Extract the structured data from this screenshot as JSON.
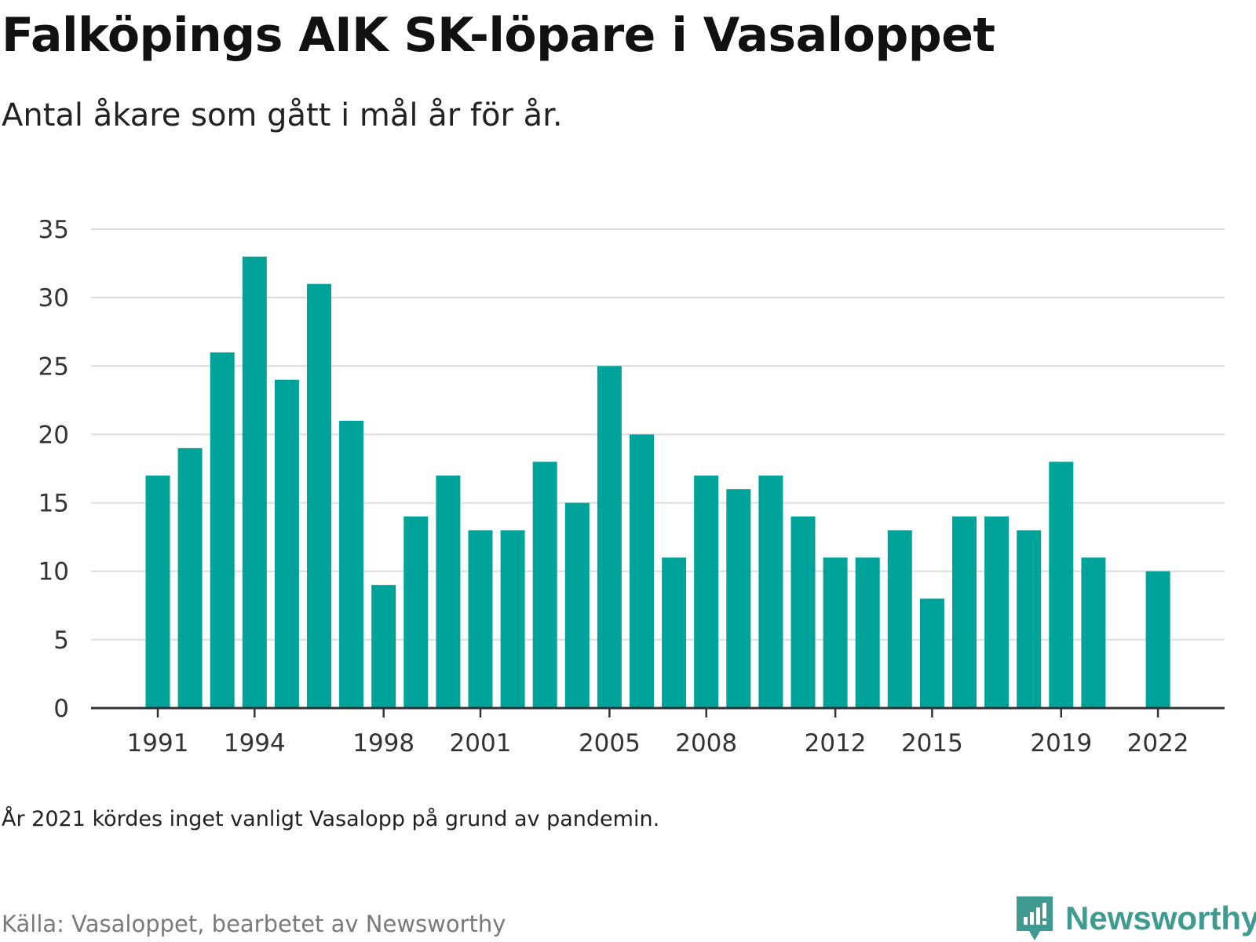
{
  "title": "Falköpings AIK SK-löpare i Vasaloppet",
  "subtitle": "Antal åkare som gått i mål år för år.",
  "note": "År 2021 kördes inget vanligt Vasalopp på grund av pandemin.",
  "source": "Källa: Vasaloppet, bearbetet av Newsworthy",
  "brand": {
    "name": "Newsworthy",
    "icon": "newsworthy-logo-icon",
    "color": "#3f9a92"
  },
  "chart_data": {
    "type": "bar",
    "title": "Falköpings AIK SK-löpare i Vasaloppet",
    "subtitle": "Antal åkare som gått i mål år för år.",
    "xlabel": "",
    "ylabel": "",
    "x": [
      1991,
      1992,
      1993,
      1994,
      1995,
      1996,
      1997,
      1998,
      1999,
      2000,
      2001,
      2002,
      2003,
      2004,
      2005,
      2006,
      2007,
      2008,
      2009,
      2010,
      2011,
      2012,
      2013,
      2014,
      2015,
      2016,
      2017,
      2018,
      2019,
      2020,
      2021,
      2022
    ],
    "values": [
      17,
      19,
      26,
      33,
      24,
      31,
      21,
      9,
      14,
      17,
      13,
      13,
      18,
      15,
      25,
      20,
      11,
      17,
      16,
      17,
      14,
      11,
      11,
      13,
      8,
      14,
      14,
      13,
      18,
      11,
      null,
      10
    ],
    "x_ticks": [
      1991,
      1994,
      1998,
      2001,
      2005,
      2008,
      2012,
      2015,
      2019,
      2022
    ],
    "y_ticks": [
      0,
      5,
      10,
      15,
      20,
      25,
      30,
      35
    ],
    "ylim": [
      0,
      35
    ],
    "grid": true,
    "bar_color": "#00a39a"
  }
}
